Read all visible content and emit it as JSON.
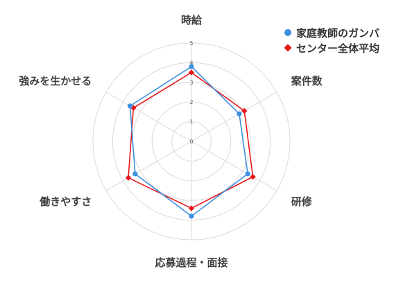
{
  "chart_data": {
    "type": "radar",
    "axes": [
      "時給",
      "案件数",
      "研修",
      "応募過程・面接",
      "働きやすさ",
      "強みを生かせる"
    ],
    "rlim": [
      0,
      5
    ],
    "rticks": [
      "0",
      "1",
      "2",
      "3",
      "4",
      "5"
    ],
    "grid": true,
    "legend_position": "top-right",
    "series": [
      {
        "name": "家庭教師のガンバ",
        "color": "#3d8fe0",
        "marker": "circle",
        "values": [
          3.8,
          2.8,
          3.3,
          3.8,
          3.3,
          3.6
        ]
      },
      {
        "name": "センター全体平均",
        "color": "#e8161b",
        "marker": "diamond",
        "values": [
          3.5,
          3.1,
          3.6,
          3.4,
          3.7,
          3.4
        ]
      }
    ]
  }
}
